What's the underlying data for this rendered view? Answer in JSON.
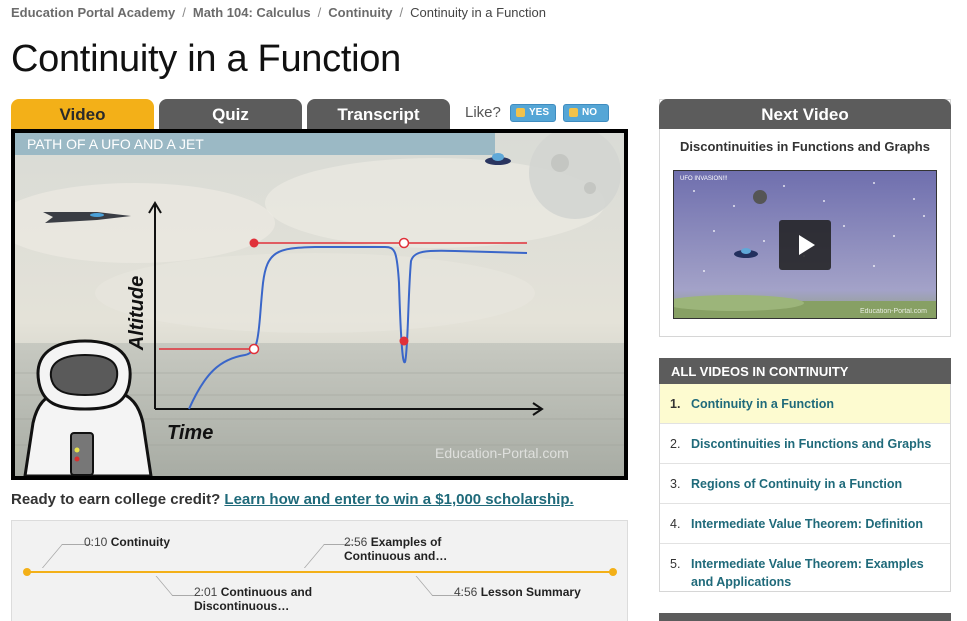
{
  "breadcrumb": {
    "items": [
      "Education Portal Academy",
      "Math 104: Calculus",
      "Continuity"
    ],
    "current": "Continuity in a Function",
    "separator": "/"
  },
  "page_title": "Continuity in a Function",
  "tabs": [
    {
      "label": "Video",
      "active": true
    },
    {
      "label": "Quiz",
      "active": false
    },
    {
      "label": "Transcript",
      "active": false
    }
  ],
  "like": {
    "label": "Like?",
    "yes": "YES",
    "no": "NO"
  },
  "video": {
    "banner": "PATH OF A UFO AND A JET",
    "y_label": "Altitude",
    "x_label": "Time",
    "watermark": "Education-Portal.com"
  },
  "credit": {
    "prompt": "Ready to earn college credit?",
    "link": "Learn how and enter to win a $1,000 scholarship."
  },
  "timeline": [
    {
      "time": "0:10",
      "title": "Continuity"
    },
    {
      "time": "2:01",
      "title": "Continuous and",
      "title2": "Discontinuous…"
    },
    {
      "time": "2:56",
      "title": "Examples of",
      "title2": "Continuous and…"
    },
    {
      "time": "4:56",
      "title": "Lesson Summary"
    }
  ],
  "next_video": {
    "header": "Next Video",
    "title": "Discontinuities in Functions and Graphs",
    "thumb_caption": "UFO INVASION!!!",
    "thumb_watermark": "Education-Portal.com"
  },
  "all_videos": {
    "header": "ALL VIDEOS IN CONTINUITY",
    "items": [
      {
        "num": "1.",
        "label": "Continuity in a Function",
        "active": true
      },
      {
        "num": "2.",
        "label": "Discontinuities in Functions and Graphs",
        "active": false
      },
      {
        "num": "3.",
        "label": "Regions of Continuity in a Function",
        "active": false
      },
      {
        "num": "4.",
        "label": "Intermediate Value Theorem: Definition",
        "active": false
      },
      {
        "num": "5.",
        "label": "Intermediate Value Theorem: Examples",
        "label2": "and Applications",
        "active": false
      }
    ]
  },
  "colors": {
    "accent": "#f3b018",
    "tab_inactive": "#5c5c5c",
    "link": "#1f6a7a",
    "curve": "#3a66c9",
    "red_line": "#e0313a"
  }
}
